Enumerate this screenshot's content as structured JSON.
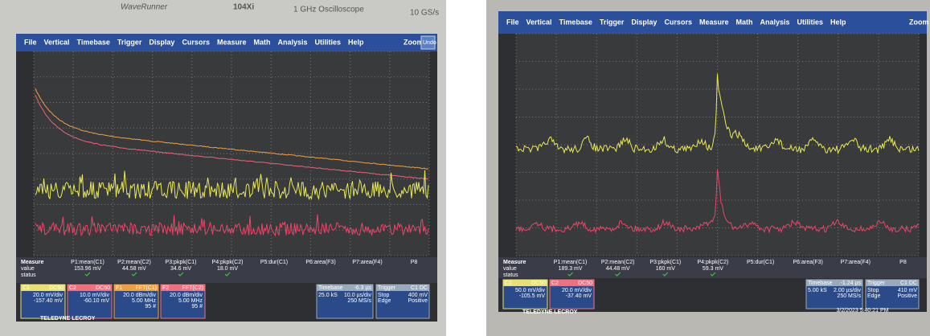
{
  "panels": [
    {
      "bezel": {
        "model": "WaveRunner",
        "series": "104Xi",
        "bandwidth": "1 GHz Oscilloscope",
        "rate": "10 GS/s"
      },
      "menu": [
        "File",
        "Vertical",
        "Timebase",
        "Trigger",
        "Display",
        "Cursors",
        "Measure",
        "Math",
        "Analysis",
        "Utilities",
        "Help"
      ],
      "zoom": "Zoom",
      "undo": "Undo",
      "measure": {
        "header": [
          "Measure",
          "value",
          "status"
        ],
        "params": [
          {
            "name": "P1:mean(C1)",
            "value": "153.96 mV"
          },
          {
            "name": "P2:mean(C2)",
            "value": "44.58 mV"
          },
          {
            "name": "P3:pkpk(C1)",
            "value": "34.6 mV"
          },
          {
            "name": "P4:pkpk(C2)",
            "value": "18.0 mV"
          },
          {
            "name": "P5:dur(C1)",
            "value": ""
          },
          {
            "name": "P6:area(F3)",
            "value": ""
          },
          {
            "name": "P7:area(F4)",
            "value": ""
          },
          {
            "name": "P8",
            "value": ""
          }
        ]
      },
      "channels": [
        {
          "label": "C1",
          "tag": "DC50",
          "lines": [
            "20.0 mV/div",
            "-157.40 mV"
          ]
        },
        {
          "label": "C2",
          "tag": "DC50",
          "lines": [
            "10.0 mV/div",
            "-60.10 mV"
          ]
        },
        {
          "label": "F1",
          "tag": "FFT(C1)",
          "lines": [
            "20.0 dBm/div",
            "5.00 MHz",
            "95 #"
          ]
        },
        {
          "label": "F2",
          "tag": "FFT(C2)",
          "lines": [
            "20.0 dBm/div",
            "5.00 MHz",
            "95 #"
          ]
        }
      ],
      "timebase": {
        "title": "Timebase",
        "offset": "-6.3 µs",
        "lines": [
          "10.0 µs/div",
          "250 MS/s"
        ],
        "samples": "25.0 kS"
      },
      "trigger": {
        "title": "Trigger",
        "tag": "C1 DC",
        "lines": [
          "Stop",
          "400 mV",
          "Edge",
          "Positive"
        ]
      },
      "brand": "TELEDYNE LECROY"
    },
    {
      "menu": [
        "File",
        "Vertical",
        "Timebase",
        "Trigger",
        "Display",
        "Cursors",
        "Measure",
        "Math",
        "Analysis",
        "Utilities",
        "Help"
      ],
      "zoom": "Zoom",
      "measure": {
        "header": [
          "Measure",
          "value",
          "status"
        ],
        "params": [
          {
            "name": "P1:mean(C1)",
            "value": "189.3 mV"
          },
          {
            "name": "P2:mean(C2)",
            "value": "44.48 mV"
          },
          {
            "name": "P3:pkpk(C1)",
            "value": "160 mV"
          },
          {
            "name": "P4:pkpk(C2)",
            "value": "59.3 mV"
          },
          {
            "name": "P5:dur(C1)",
            "value": ""
          },
          {
            "name": "P6:area(F3)",
            "value": ""
          },
          {
            "name": "P7:area(F4)",
            "value": ""
          },
          {
            "name": "P8",
            "value": ""
          }
        ]
      },
      "channels": [
        {
          "label": "C1",
          "tag": "DC50",
          "lines": [
            "50.0 mV/div",
            "-105.5 mV"
          ]
        },
        {
          "label": "C2",
          "tag": "DC50",
          "lines": [
            "20.0 mV/div",
            "-37.40 mV"
          ]
        }
      ],
      "timebase": {
        "title": "Timebase",
        "offset": "-1.24 µs",
        "lines": [
          "2.00 µs/div",
          "250 MS/s"
        ],
        "samples": "5.00 kS"
      },
      "trigger": {
        "title": "Trigger",
        "tag": "C1 DC",
        "lines": [
          "Stop",
          "410 mV",
          "Edge",
          "Positive"
        ]
      },
      "timestamp": "3/2/2023 5:40:21 PM",
      "brand": "TELEDYNE LECROY"
    }
  ]
}
